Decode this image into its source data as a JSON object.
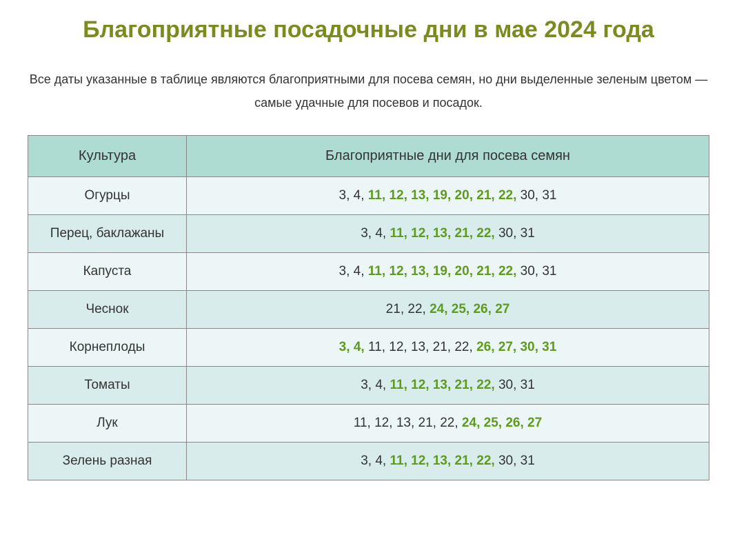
{
  "title": "Благоприятные посадочные дни в мае 2024 года",
  "subtitle": "Все даты указанные в таблице являются благоприятными для посева семян, но дни выделенные зеленым цветом — самые удачные для посевов и посадок.",
  "colors": {
    "title_color": "#7d8a1e",
    "header_bg": "#aedbd2",
    "row_odd_bg": "#ecf6f6",
    "row_even_bg": "#d8eceb",
    "border_color": "#888888",
    "green_day_color": "#5d9a1d",
    "text_color": "#333333"
  },
  "table": {
    "headers": {
      "culture": "Культура",
      "days": "Благоприятные дни для посева семян"
    },
    "rows": [
      {
        "culture": "Огурцы",
        "days": [
          {
            "value": "3",
            "green": false
          },
          {
            "value": "4",
            "green": false
          },
          {
            "value": "11",
            "green": true
          },
          {
            "value": "12",
            "green": true
          },
          {
            "value": "13",
            "green": true
          },
          {
            "value": "19",
            "green": true
          },
          {
            "value": "20",
            "green": true
          },
          {
            "value": "21",
            "green": true
          },
          {
            "value": "22",
            "green": true
          },
          {
            "value": "30",
            "green": false
          },
          {
            "value": "31",
            "green": false
          }
        ]
      },
      {
        "culture": "Перец, баклажаны",
        "days": [
          {
            "value": "3",
            "green": false
          },
          {
            "value": "4",
            "green": false
          },
          {
            "value": "11",
            "green": true
          },
          {
            "value": "12",
            "green": true
          },
          {
            "value": "13",
            "green": true
          },
          {
            "value": "21",
            "green": true
          },
          {
            "value": "22",
            "green": true
          },
          {
            "value": "30",
            "green": false
          },
          {
            "value": "31",
            "green": false
          }
        ]
      },
      {
        "culture": "Капуста",
        "days": [
          {
            "value": "3",
            "green": false
          },
          {
            "value": "4",
            "green": false
          },
          {
            "value": "11",
            "green": true
          },
          {
            "value": "12",
            "green": true
          },
          {
            "value": "13",
            "green": true
          },
          {
            "value": "19",
            "green": true
          },
          {
            "value": "20",
            "green": true
          },
          {
            "value": "21",
            "green": true
          },
          {
            "value": "22",
            "green": true
          },
          {
            "value": "30",
            "green": false
          },
          {
            "value": "31",
            "green": false
          }
        ]
      },
      {
        "culture": "Чеснок",
        "days": [
          {
            "value": "21",
            "green": false
          },
          {
            "value": "22",
            "green": false
          },
          {
            "value": "24",
            "green": true
          },
          {
            "value": "25",
            "green": true
          },
          {
            "value": "26",
            "green": true
          },
          {
            "value": "27",
            "green": true
          }
        ]
      },
      {
        "culture": "Корнеплоды",
        "days": [
          {
            "value": "3",
            "green": true
          },
          {
            "value": "4",
            "green": true
          },
          {
            "value": "11",
            "green": false
          },
          {
            "value": "12",
            "green": false
          },
          {
            "value": "13",
            "green": false
          },
          {
            "value": "21",
            "green": false
          },
          {
            "value": "22",
            "green": false
          },
          {
            "value": "26",
            "green": true
          },
          {
            "value": "27",
            "green": true
          },
          {
            "value": "30",
            "green": true
          },
          {
            "value": "31",
            "green": true
          }
        ]
      },
      {
        "culture": "Томаты",
        "days": [
          {
            "value": "3",
            "green": false
          },
          {
            "value": "4",
            "green": false
          },
          {
            "value": "11",
            "green": true
          },
          {
            "value": "12",
            "green": true
          },
          {
            "value": "13",
            "green": true
          },
          {
            "value": "21",
            "green": true
          },
          {
            "value": "22",
            "green": true
          },
          {
            "value": "30",
            "green": false
          },
          {
            "value": "31",
            "green": false
          }
        ]
      },
      {
        "culture": "Лук",
        "days": [
          {
            "value": "11",
            "green": false
          },
          {
            "value": "12",
            "green": false
          },
          {
            "value": "13",
            "green": false
          },
          {
            "value": "21",
            "green": false
          },
          {
            "value": "22",
            "green": false
          },
          {
            "value": "24",
            "green": true
          },
          {
            "value": "25",
            "green": true
          },
          {
            "value": "26",
            "green": true
          },
          {
            "value": "27",
            "green": true
          }
        ]
      },
      {
        "culture": "Зелень разная",
        "days": [
          {
            "value": "3",
            "green": false
          },
          {
            "value": "4",
            "green": false
          },
          {
            "value": "11",
            "green": true
          },
          {
            "value": "12",
            "green": true
          },
          {
            "value": "13",
            "green": true
          },
          {
            "value": "21",
            "green": true
          },
          {
            "value": "22",
            "green": true
          },
          {
            "value": "30",
            "green": false
          },
          {
            "value": "31",
            "green": false
          }
        ]
      }
    ]
  }
}
